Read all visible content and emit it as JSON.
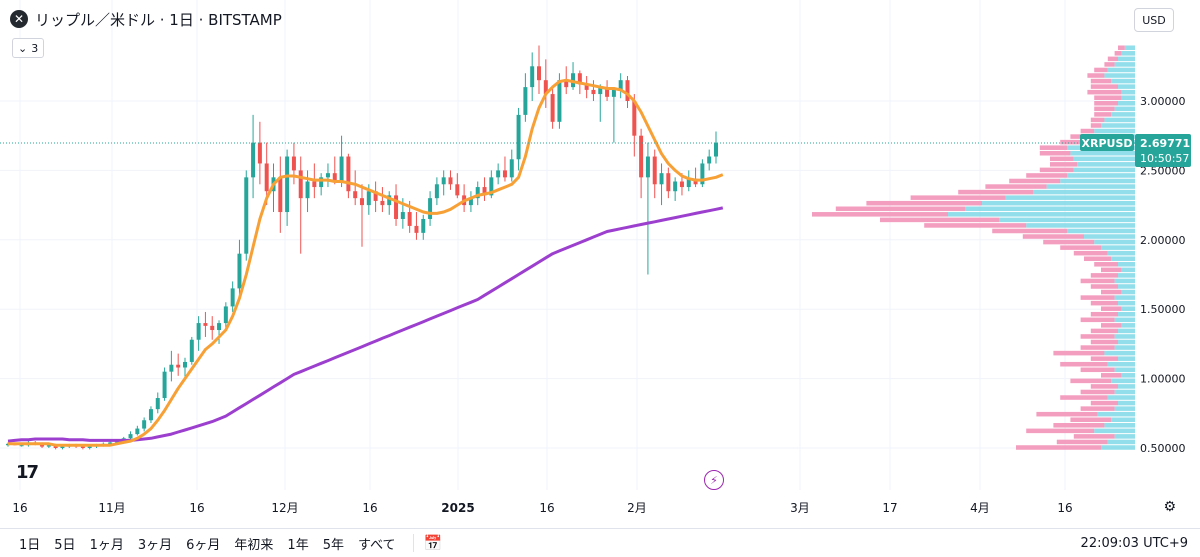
{
  "header": {
    "symbol_icon": "close-circle-icon",
    "title": "リップル／米ドル · 1日 · BITSTAMP",
    "indicator_count": "3",
    "currency": "USD"
  },
  "price_label": {
    "symbol": "XRPUSD",
    "price": "2.69771",
    "countdown": "10:50:57"
  },
  "timeframes": [
    "1日",
    "5日",
    "1ヶ月",
    "3ヶ月",
    "6ヶ月",
    "年初来",
    "1年",
    "5年",
    "すべて"
  ],
  "clock": "22:09:03 UTC+9",
  "colors": {
    "up": "#26a69a",
    "down": "#ef5350",
    "ma_short": "#f7a035",
    "ma_long": "#9c3fcf",
    "vp_up": "#7fd8e6",
    "vp_down": "#f28db4"
  },
  "chart_data": {
    "type": "candlestick",
    "x_tick_labels": [
      "16",
      "11月",
      "16",
      "12月",
      "16",
      "2025",
      "16",
      "2月",
      "3月",
      "17",
      "4月",
      "16"
    ],
    "y_axis": {
      "ticks": [
        0.5,
        1.0,
        1.5,
        2.0,
        2.5,
        3.0
      ],
      "tick_labels": [
        "0.50000",
        "1.00000",
        "1.50000",
        "2.00000",
        "2.50000",
        "3.00000"
      ],
      "range": [
        0.45,
        3.45
      ]
    },
    "last_price": 2.69771,
    "candles": [
      [
        0.52,
        0.54,
        0.51,
        0.53
      ],
      [
        0.53,
        0.54,
        0.52,
        0.52
      ],
      [
        0.52,
        0.53,
        0.51,
        0.52
      ],
      [
        0.52,
        0.55,
        0.51,
        0.54
      ],
      [
        0.54,
        0.55,
        0.52,
        0.53
      ],
      [
        0.53,
        0.54,
        0.5,
        0.51
      ],
      [
        0.51,
        0.53,
        0.5,
        0.52
      ],
      [
        0.52,
        0.53,
        0.49,
        0.5
      ],
      [
        0.5,
        0.52,
        0.49,
        0.51
      ],
      [
        0.51,
        0.53,
        0.5,
        0.52
      ],
      [
        0.52,
        0.53,
        0.5,
        0.51
      ],
      [
        0.51,
        0.52,
        0.49,
        0.5
      ],
      [
        0.5,
        0.52,
        0.49,
        0.51
      ],
      [
        0.51,
        0.53,
        0.5,
        0.52
      ],
      [
        0.52,
        0.54,
        0.51,
        0.53
      ],
      [
        0.53,
        0.55,
        0.52,
        0.54
      ],
      [
        0.54,
        0.56,
        0.53,
        0.55
      ],
      [
        0.55,
        0.58,
        0.54,
        0.57
      ],
      [
        0.57,
        0.62,
        0.56,
        0.6
      ],
      [
        0.6,
        0.66,
        0.59,
        0.64
      ],
      [
        0.64,
        0.72,
        0.62,
        0.7
      ],
      [
        0.7,
        0.8,
        0.68,
        0.78
      ],
      [
        0.78,
        0.9,
        0.75,
        0.86
      ],
      [
        0.86,
        1.08,
        0.84,
        1.05
      ],
      [
        1.05,
        1.2,
        0.98,
        1.1
      ],
      [
        1.1,
        1.18,
        1.02,
        1.08
      ],
      [
        1.08,
        1.15,
        1.0,
        1.12
      ],
      [
        1.12,
        1.3,
        1.1,
        1.28
      ],
      [
        1.28,
        1.45,
        1.2,
        1.4
      ],
      [
        1.4,
        1.48,
        1.3,
        1.38
      ],
      [
        1.38,
        1.45,
        1.28,
        1.35
      ],
      [
        1.35,
        1.42,
        1.25,
        1.4
      ],
      [
        1.4,
        1.55,
        1.35,
        1.52
      ],
      [
        1.52,
        1.7,
        1.48,
        1.65
      ],
      [
        1.65,
        2.0,
        1.6,
        1.9
      ],
      [
        1.9,
        2.5,
        1.85,
        2.45
      ],
      [
        2.45,
        2.9,
        2.3,
        2.7
      ],
      [
        2.7,
        2.85,
        2.4,
        2.55
      ],
      [
        2.55,
        2.7,
        2.25,
        2.35
      ],
      [
        2.35,
        2.55,
        2.2,
        2.45
      ],
      [
        2.45,
        2.6,
        2.05,
        2.2
      ],
      [
        2.2,
        2.65,
        2.1,
        2.6
      ],
      [
        2.6,
        2.7,
        2.4,
        2.5
      ],
      [
        2.5,
        2.6,
        1.9,
        2.3
      ],
      [
        2.3,
        2.5,
        2.2,
        2.42
      ],
      [
        2.42,
        2.55,
        2.3,
        2.38
      ],
      [
        2.38,
        2.48,
        2.32,
        2.45
      ],
      [
        2.45,
        2.55,
        2.38,
        2.48
      ],
      [
        2.48,
        2.6,
        2.4,
        2.42
      ],
      [
        2.42,
        2.75,
        2.38,
        2.6
      ],
      [
        2.6,
        2.62,
        2.3,
        2.35
      ],
      [
        2.35,
        2.5,
        2.25,
        2.3
      ],
      [
        2.3,
        2.4,
        1.95,
        2.25
      ],
      [
        2.25,
        2.4,
        2.18,
        2.35
      ],
      [
        2.35,
        2.42,
        2.2,
        2.28
      ],
      [
        2.28,
        2.38,
        2.2,
        2.25
      ],
      [
        2.25,
        2.35,
        2.18,
        2.32
      ],
      [
        2.32,
        2.4,
        2.1,
        2.15
      ],
      [
        2.15,
        2.3,
        2.08,
        2.2
      ],
      [
        2.2,
        2.28,
        2.05,
        2.1
      ],
      [
        2.1,
        2.2,
        2.0,
        2.05
      ],
      [
        2.05,
        2.18,
        2.0,
        2.15
      ],
      [
        2.15,
        2.35,
        2.1,
        2.3
      ],
      [
        2.3,
        2.45,
        2.25,
        2.4
      ],
      [
        2.4,
        2.5,
        2.32,
        2.45
      ],
      [
        2.45,
        2.5,
        2.36,
        2.4
      ],
      [
        2.4,
        2.48,
        2.3,
        2.32
      ],
      [
        2.32,
        2.4,
        2.2,
        2.25
      ],
      [
        2.25,
        2.35,
        2.2,
        2.3
      ],
      [
        2.3,
        2.42,
        2.25,
        2.38
      ],
      [
        2.38,
        2.45,
        2.28,
        2.32
      ],
      [
        2.32,
        2.5,
        2.3,
        2.45
      ],
      [
        2.45,
        2.55,
        2.4,
        2.5
      ],
      [
        2.5,
        2.6,
        2.42,
        2.45
      ],
      [
        2.45,
        2.65,
        2.42,
        2.58
      ],
      [
        2.58,
        2.95,
        2.5,
        2.9
      ],
      [
        2.9,
        3.2,
        2.85,
        3.1
      ],
      [
        3.1,
        3.35,
        3.0,
        3.25
      ],
      [
        3.25,
        3.4,
        3.05,
        3.15
      ],
      [
        3.15,
        3.3,
        2.95,
        3.05
      ],
      [
        3.05,
        3.1,
        2.8,
        2.85
      ],
      [
        2.85,
        3.2,
        2.8,
        3.15
      ],
      [
        3.15,
        3.25,
        3.05,
        3.1
      ],
      [
        3.1,
        3.28,
        3.08,
        3.2
      ],
      [
        3.2,
        3.22,
        3.05,
        3.12
      ],
      [
        3.12,
        3.18,
        3.02,
        3.08
      ],
      [
        3.08,
        3.15,
        3.0,
        3.05
      ],
      [
        3.05,
        3.12,
        2.85,
        3.1
      ],
      [
        3.1,
        3.15,
        3.0,
        3.03
      ],
      [
        3.03,
        3.1,
        2.7,
        3.08
      ],
      [
        3.08,
        3.2,
        3.02,
        3.15
      ],
      [
        3.15,
        3.18,
        2.95,
        3.0
      ],
      [
        3.0,
        3.05,
        2.6,
        2.75
      ],
      [
        2.75,
        2.8,
        2.3,
        2.45
      ],
      [
        2.45,
        2.7,
        1.75,
        2.6
      ],
      [
        2.6,
        2.65,
        2.3,
        2.4
      ],
      [
        2.4,
        2.55,
        2.25,
        2.48
      ],
      [
        2.48,
        2.52,
        2.3,
        2.35
      ],
      [
        2.35,
        2.45,
        2.28,
        2.42
      ],
      [
        2.42,
        2.48,
        2.32,
        2.38
      ],
      [
        2.38,
        2.5,
        2.35,
        2.44
      ],
      [
        2.44,
        2.52,
        2.38,
        2.4
      ],
      [
        2.4,
        2.58,
        2.38,
        2.55
      ],
      [
        2.55,
        2.65,
        2.5,
        2.6
      ],
      [
        2.6,
        2.78,
        2.55,
        2.7
      ]
    ],
    "ma_short": [
      0.53,
      0.53,
      0.53,
      0.53,
      0.53,
      0.53,
      0.53,
      0.52,
      0.52,
      0.52,
      0.52,
      0.52,
      0.52,
      0.52,
      0.52,
      0.52,
      0.53,
      0.54,
      0.55,
      0.57,
      0.6,
      0.64,
      0.7,
      0.77,
      0.85,
      0.93,
      1.0,
      1.07,
      1.14,
      1.21,
      1.25,
      1.3,
      1.35,
      1.45,
      1.58,
      1.75,
      1.95,
      2.15,
      2.3,
      2.4,
      2.45,
      2.46,
      2.46,
      2.45,
      2.44,
      2.43,
      2.43,
      2.43,
      2.42,
      2.42,
      2.41,
      2.4,
      2.38,
      2.36,
      2.34,
      2.32,
      2.3,
      2.28,
      2.26,
      2.24,
      2.22,
      2.2,
      2.19,
      2.19,
      2.2,
      2.22,
      2.25,
      2.28,
      2.3,
      2.32,
      2.33,
      2.34,
      2.36,
      2.38,
      2.4,
      2.45,
      2.6,
      2.8,
      2.95,
      3.05,
      3.1,
      3.14,
      3.15,
      3.14,
      3.13,
      3.12,
      3.11,
      3.1,
      3.09,
      3.09,
      3.08,
      3.05,
      3.0,
      2.92,
      2.82,
      2.72,
      2.62,
      2.55,
      2.5,
      2.46,
      2.44,
      2.43,
      2.43,
      2.44,
      2.45,
      2.47
    ],
    "ma_long": [
      0.55,
      0.555,
      0.56,
      0.56,
      0.565,
      0.565,
      0.565,
      0.565,
      0.565,
      0.56,
      0.56,
      0.56,
      0.555,
      0.555,
      0.555,
      0.555,
      0.555,
      0.555,
      0.555,
      0.56,
      0.565,
      0.57,
      0.58,
      0.59,
      0.6,
      0.615,
      0.63,
      0.645,
      0.66,
      0.675,
      0.69,
      0.71,
      0.73,
      0.76,
      0.79,
      0.82,
      0.85,
      0.88,
      0.91,
      0.94,
      0.97,
      1.0,
      1.03,
      1.05,
      1.07,
      1.09,
      1.11,
      1.13,
      1.15,
      1.17,
      1.19,
      1.21,
      1.23,
      1.25,
      1.27,
      1.29,
      1.31,
      1.33,
      1.35,
      1.37,
      1.39,
      1.41,
      1.43,
      1.45,
      1.47,
      1.49,
      1.51,
      1.53,
      1.55,
      1.57,
      1.6,
      1.63,
      1.66,
      1.69,
      1.72,
      1.75,
      1.78,
      1.81,
      1.84,
      1.87,
      1.9,
      1.92,
      1.94,
      1.96,
      1.98,
      2.0,
      2.02,
      2.04,
      2.06,
      2.07,
      2.08,
      2.09,
      2.1,
      2.11,
      2.12,
      2.13,
      2.14,
      2.15,
      2.16,
      2.17,
      2.18,
      2.19,
      2.2,
      2.21,
      2.22,
      2.23
    ],
    "volume_profile": {
      "price_from": 0.48,
      "price_to": 3.4,
      "up": [
        0.1,
        0.08,
        0.06,
        0.12,
        0.09,
        0.07,
        0.11,
        0.06,
        0.05,
        0.08,
        0.06,
        0.05,
        0.07,
        0.04,
        0.06,
        0.08,
        0.05,
        0.09,
        0.06,
        0.05,
        0.06,
        0.05,
        0.04,
        0.06,
        0.05,
        0.04,
        0.05,
        0.06,
        0.04,
        0.05,
        0.06,
        0.05,
        0.04,
        0.05,
        0.07,
        0.08,
        0.1,
        0.12,
        0.15,
        0.2,
        0.32,
        0.4,
        0.55,
        0.5,
        0.45,
        0.38,
        0.3,
        0.26,
        0.22,
        0.2,
        0.18,
        0.17,
        0.18,
        0.19,
        0.2,
        0.16,
        0.14,
        0.12,
        0.1,
        0.09,
        0.07,
        0.06,
        0.05,
        0.04,
        0.04,
        0.05,
        0.07,
        0.09,
        0.08,
        0.06,
        0.05,
        0.04,
        0.03
      ],
      "down": [
        0.25,
        0.15,
        0.12,
        0.2,
        0.15,
        0.12,
        0.18,
        0.1,
        0.08,
        0.14,
        0.1,
        0.08,
        0.12,
        0.06,
        0.1,
        0.14,
        0.08,
        0.15,
        0.1,
        0.08,
        0.1,
        0.08,
        0.06,
        0.1,
        0.08,
        0.06,
        0.08,
        0.1,
        0.06,
        0.08,
        0.1,
        0.08,
        0.06,
        0.07,
        0.08,
        0.1,
        0.12,
        0.15,
        0.18,
        0.22,
        0.3,
        0.35,
        0.4,
        0.38,
        0.34,
        0.28,
        0.22,
        0.18,
        0.15,
        0.12,
        0.1,
        0.08,
        0.07,
        0.09,
        0.08,
        0.06,
        0.05,
        0.04,
        0.03,
        0.04,
        0.05,
        0.06,
        0.07,
        0.08,
        0.1,
        0.08,
        0.06,
        0.05,
        0.04,
        0.03,
        0.03,
        0.02,
        0.02
      ]
    }
  }
}
